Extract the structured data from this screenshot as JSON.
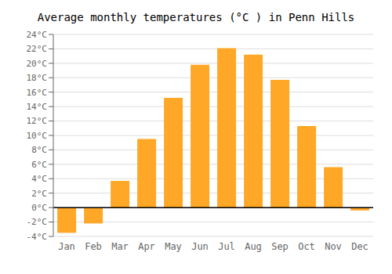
{
  "chart_data": {
    "type": "bar",
    "title": "Average monthly temperatures (°C ) in Penn Hills",
    "categories": [
      "Jan",
      "Feb",
      "Mar",
      "Apr",
      "May",
      "Jun",
      "Jul",
      "Aug",
      "Sep",
      "Oct",
      "Nov",
      "Dec"
    ],
    "values": [
      -3.5,
      -2.2,
      3.7,
      9.5,
      15.2,
      19.8,
      22.1,
      21.2,
      17.7,
      11.3,
      5.6,
      -0.4
    ],
    "color": "#FFA726",
    "ylim": [
      -4,
      24
    ],
    "yticks": [
      {
        "value": -4,
        "label": "-4°C"
      },
      {
        "value": -2,
        "label": "-2°C"
      },
      {
        "value": 0,
        "label": "0°C"
      },
      {
        "value": 2,
        "label": "2°C"
      },
      {
        "value": 4,
        "label": "4°C"
      },
      {
        "value": 6,
        "label": "6°C"
      },
      {
        "value": 8,
        "label": "8°C"
      },
      {
        "value": 10,
        "label": "10°C"
      },
      {
        "value": 12,
        "label": "12°C"
      },
      {
        "value": 14,
        "label": "14°C"
      },
      {
        "value": 16,
        "label": "16°C"
      },
      {
        "value": 18,
        "label": "18°C"
      },
      {
        "value": 20,
        "label": "20°C"
      },
      {
        "value": 22,
        "label": "22°C"
      },
      {
        "value": 24,
        "label": "24°C"
      }
    ],
    "grid": true
  }
}
